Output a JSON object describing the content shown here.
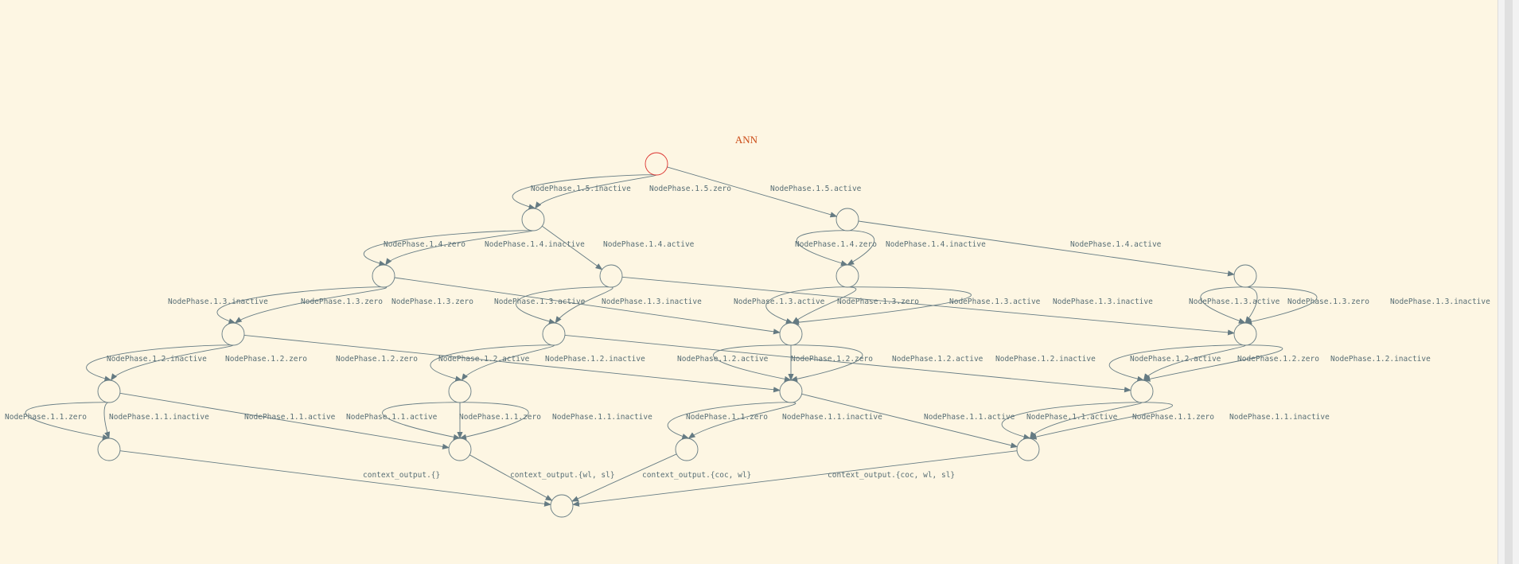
{
  "title": "ANN",
  "colors": {
    "background": "#fdf6e3",
    "title": "#cb4b16",
    "root_node_stroke": "#dc322f",
    "node_stroke": "#657b83",
    "edge": "#657b83",
    "label": "#586e75"
  },
  "nodes": [
    {
      "id": "root",
      "root": true
    },
    {
      "id": "n1"
    },
    {
      "id": "n2"
    },
    {
      "id": "n3"
    },
    {
      "id": "n4"
    },
    {
      "id": "n5"
    },
    {
      "id": "n6"
    },
    {
      "id": "n7"
    },
    {
      "id": "n8"
    },
    {
      "id": "n9"
    },
    {
      "id": "n10"
    },
    {
      "id": "n11"
    },
    {
      "id": "n12"
    },
    {
      "id": "n13"
    },
    {
      "id": "n14"
    },
    {
      "id": "n15"
    },
    {
      "id": "n16"
    },
    {
      "id": "n17"
    },
    {
      "id": "n18"
    },
    {
      "id": "out"
    }
  ],
  "edges": [
    {
      "from": "root",
      "to": "n1",
      "label": "NodePhase.1.5.inactive"
    },
    {
      "from": "root",
      "to": "n1",
      "label": "NodePhase.1.5.zero"
    },
    {
      "from": "root",
      "to": "n2",
      "label": "NodePhase.1.5.active"
    },
    {
      "from": "n1",
      "to": "n3",
      "label": "NodePhase.1.4.zero"
    },
    {
      "from": "n1",
      "to": "n3",
      "label": "NodePhase.1.4.inactive"
    },
    {
      "from": "n1",
      "to": "n4",
      "label": "NodePhase.1.4.active"
    },
    {
      "from": "n2",
      "to": "n5",
      "label": "NodePhase.1.4.zero"
    },
    {
      "from": "n2",
      "to": "n5",
      "label": "NodePhase.1.4.inactive"
    },
    {
      "from": "n2",
      "to": "n6",
      "label": "NodePhase.1.4.active"
    },
    {
      "from": "n3",
      "to": "n7",
      "label": "NodePhase.1.3.inactive"
    },
    {
      "from": "n3",
      "to": "n7",
      "label": "NodePhase.1.3.zero"
    },
    {
      "from": "n3",
      "to": "n9",
      "label": "NodePhase.1.3.active"
    },
    {
      "from": "n4",
      "to": "n8",
      "label": "NodePhase.1.3.zero"
    },
    {
      "from": "n4",
      "to": "n8",
      "label": "NodePhase.1.3.inactive"
    },
    {
      "from": "n4",
      "to": "n10",
      "label": "NodePhase.1.3.active"
    },
    {
      "from": "n5",
      "to": "n9",
      "label": "NodePhase.1.3.active"
    },
    {
      "from": "n5",
      "to": "n9",
      "label": "NodePhase.1.3.zero"
    },
    {
      "from": "n5",
      "to": "n9",
      "label": "NodePhase.1.3.inactive"
    },
    {
      "from": "n6",
      "to": "n10",
      "label": "NodePhase.1.3.active"
    },
    {
      "from": "n6",
      "to": "n10",
      "label": "NodePhase.1.3.zero"
    },
    {
      "from": "n6",
      "to": "n10",
      "label": "NodePhase.1.3.inactive"
    },
    {
      "from": "n7",
      "to": "n11",
      "label": "NodePhase.1.2.inactive"
    },
    {
      "from": "n7",
      "to": "n11",
      "label": "NodePhase.1.2.zero"
    },
    {
      "from": "n7",
      "to": "n13",
      "label": "NodePhase.1.2.active"
    },
    {
      "from": "n8",
      "to": "n12",
      "label": "NodePhase.1.2.zero"
    },
    {
      "from": "n8",
      "to": "n12",
      "label": "NodePhase.1.2.inactive"
    },
    {
      "from": "n8",
      "to": "n14",
      "label": "NodePhase.1.2.active"
    },
    {
      "from": "n9",
      "to": "n13",
      "label": "NodePhase.1.2.active"
    },
    {
      "from": "n9",
      "to": "n13",
      "label": "NodePhase.1.2.zero"
    },
    {
      "from": "n9",
      "to": "n13",
      "label": "NodePhase.1.2.inactive"
    },
    {
      "from": "n10",
      "to": "n14",
      "label": "NodePhase.1.2.active"
    },
    {
      "from": "n10",
      "to": "n14",
      "label": "NodePhase.1.2.zero"
    },
    {
      "from": "n10",
      "to": "n14",
      "label": "NodePhase.1.2.inactive"
    },
    {
      "from": "n11",
      "to": "n15",
      "label": "NodePhase.1.1.zero"
    },
    {
      "from": "n11",
      "to": "n15",
      "label": "NodePhase.1.1.inactive"
    },
    {
      "from": "n11",
      "to": "n16",
      "label": "NodePhase.1.1.active"
    },
    {
      "from": "n12",
      "to": "n16",
      "label": "NodePhase.1.1.active"
    },
    {
      "from": "n12",
      "to": "n16",
      "label": "NodePhase.1.1.zero"
    },
    {
      "from": "n12",
      "to": "n16",
      "label": "NodePhase.1.1.inactive"
    },
    {
      "from": "n13",
      "to": "n17",
      "label": "NodePhase.1.1.zero"
    },
    {
      "from": "n13",
      "to": "n17",
      "label": "NodePhase.1.1.inactive"
    },
    {
      "from": "n13",
      "to": "n18",
      "label": "NodePhase.1.1.active"
    },
    {
      "from": "n14",
      "to": "n18",
      "label": "NodePhase.1.1.active"
    },
    {
      "from": "n14",
      "to": "n18",
      "label": "NodePhase.1.1.zero"
    },
    {
      "from": "n14",
      "to": "n18",
      "label": "NodePhase.1.1.inactive"
    },
    {
      "from": "n15",
      "to": "out",
      "label": "context_output.{}"
    },
    {
      "from": "n16",
      "to": "out",
      "label": "context_output.{wl, sl}"
    },
    {
      "from": "n17",
      "to": "out",
      "label": "context_output.{coc, wl}"
    },
    {
      "from": "n18",
      "to": "out",
      "label": "context_output.{coc, wl, sl}"
    }
  ]
}
